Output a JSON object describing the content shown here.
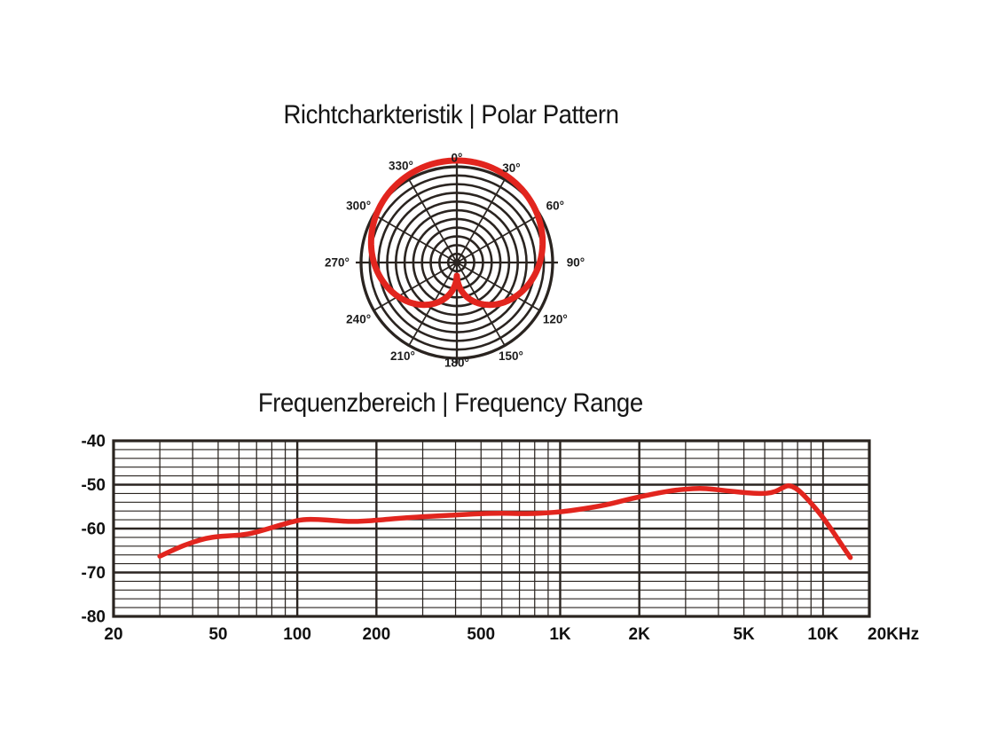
{
  "colors": {
    "background": "#ffffff",
    "curve_red": "#e2251e",
    "grid_dark": "#2a2420",
    "text": "#161616"
  },
  "chart_data": [
    {
      "type": "polar",
      "title": "Richtcharkteristik | Polar Pattern",
      "pattern": "cardioid",
      "rings": 11,
      "spoke_step_deg": 30,
      "angle_ticks": [
        {
          "deg": 0,
          "label": "0°"
        },
        {
          "deg": 30,
          "label": "30°"
        },
        {
          "deg": 60,
          "label": "60°"
        },
        {
          "deg": 90,
          "label": "90°"
        },
        {
          "deg": 120,
          "label": "120°"
        },
        {
          "deg": 150,
          "label": "150°"
        },
        {
          "deg": 180,
          "label": "180°"
        },
        {
          "deg": 210,
          "label": "210°"
        },
        {
          "deg": 240,
          "label": "240°"
        },
        {
          "deg": 270,
          "label": "270°"
        },
        {
          "deg": 300,
          "label": "300°"
        },
        {
          "deg": 330,
          "label": "330°"
        }
      ],
      "r_model": {
        "formula": "r_rel = floor + scale * ((1 + cos(theta)) / 2) ^ exponent",
        "floor": 0.13,
        "scale": 0.87,
        "exponent": 0.35
      },
      "samples_deg_rrel": [
        [
          0,
          1.0
        ],
        [
          30,
          0.98
        ],
        [
          60,
          0.92
        ],
        [
          90,
          0.81
        ],
        [
          120,
          0.67
        ],
        [
          150,
          0.47
        ],
        [
          180,
          0.13
        ],
        [
          210,
          0.47
        ],
        [
          240,
          0.67
        ],
        [
          270,
          0.81
        ],
        [
          300,
          0.92
        ],
        [
          330,
          0.98
        ]
      ]
    },
    {
      "type": "line",
      "title": "Frequenzbereich | Frequency Range",
      "x_scale": "log",
      "x_unit": "Hz",
      "y_unit": "dB",
      "xlim_hz": [
        20,
        15000
      ],
      "ylim": [
        -80,
        -40
      ],
      "y_major_step_db": 10,
      "y_minor_step_db": 2,
      "x_ticks": [
        {
          "hz": 20,
          "label": "20"
        },
        {
          "hz": 50,
          "label": "50"
        },
        {
          "hz": 100,
          "label": "100"
        },
        {
          "hz": 200,
          "label": "200"
        },
        {
          "hz": 500,
          "label": "500"
        },
        {
          "hz": 1000,
          "label": "1K"
        },
        {
          "hz": 2000,
          "label": "2K"
        },
        {
          "hz": 5000,
          "label": "5K"
        },
        {
          "hz": 10000,
          "label": "10K"
        },
        {
          "hz": 20000,
          "label": "20KHz"
        }
      ],
      "y_ticks": [
        -40,
        -50,
        -60,
        -70,
        -80
      ],
      "series": [
        {
          "name": "frequency-response",
          "color": "#e2251e",
          "points_hz_db": [
            [
              30,
              -66.3
            ],
            [
              35,
              -64.4
            ],
            [
              40,
              -63.1
            ],
            [
              45,
              -62.2
            ],
            [
              50,
              -61.8
            ],
            [
              57,
              -61.6
            ],
            [
              65,
              -61.3
            ],
            [
              75,
              -60.3
            ],
            [
              85,
              -59.3
            ],
            [
              95,
              -58.5
            ],
            [
              105,
              -57.9
            ],
            [
              120,
              -57.9
            ],
            [
              140,
              -58.2
            ],
            [
              160,
              -58.4
            ],
            [
              180,
              -58.3
            ],
            [
              200,
              -58.1
            ],
            [
              250,
              -57.6
            ],
            [
              300,
              -57.3
            ],
            [
              400,
              -56.9
            ],
            [
              500,
              -56.6
            ],
            [
              600,
              -56.5
            ],
            [
              700,
              -56.6
            ],
            [
              800,
              -56.6
            ],
            [
              900,
              -56.4
            ],
            [
              1000,
              -56.2
            ],
            [
              1200,
              -55.6
            ],
            [
              1500,
              -54.6
            ],
            [
              1800,
              -53.4
            ],
            [
              2100,
              -52.5
            ],
            [
              2400,
              -51.8
            ],
            [
              2700,
              -51.3
            ],
            [
              3000,
              -51.0
            ],
            [
              3400,
              -50.8
            ],
            [
              3800,
              -51.0
            ],
            [
              4300,
              -51.4
            ],
            [
              5000,
              -51.8
            ],
            [
              5600,
              -52.0
            ],
            [
              6100,
              -52.0
            ],
            [
              6600,
              -51.6
            ],
            [
              7000,
              -50.7
            ],
            [
              7400,
              -50.1
            ],
            [
              7900,
              -50.8
            ],
            [
              8400,
              -52.2
            ],
            [
              9000,
              -54.2
            ],
            [
              9800,
              -56.8
            ],
            [
              10800,
              -60.3
            ],
            [
              11800,
              -63.8
            ],
            [
              12700,
              -66.6
            ]
          ]
        }
      ]
    }
  ]
}
